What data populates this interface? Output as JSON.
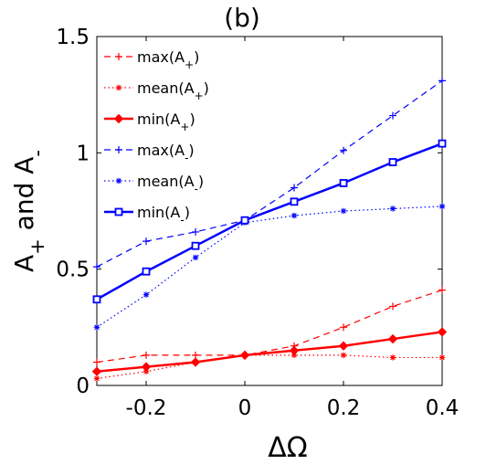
{
  "chart_data": {
    "type": "line",
    "title": "(b)",
    "xlabel": "ΔΩ",
    "ylabel": "A+ and A-",
    "xlim": [
      -0.3,
      0.4
    ],
    "ylim": [
      0,
      1.5
    ],
    "x_ticks": [
      "-0.2",
      "0",
      "0.2",
      "0.4"
    ],
    "y_ticks": [
      "0",
      "0.5",
      "1",
      "1.5"
    ],
    "grid": false,
    "legend_position": "top-left",
    "x": [
      -0.3,
      -0.2,
      -0.1,
      0,
      0.1,
      0.2,
      0.3,
      0.4
    ],
    "series": [
      {
        "name": "max(A+)",
        "values": [
          0.1,
          0.13,
          0.13,
          0.13,
          0.17,
          0.25,
          0.34,
          0.41
        ],
        "color": "#ff0000",
        "dash": "dashed",
        "marker": "plus"
      },
      {
        "name": "mean(A+)",
        "values": [
          0.03,
          0.06,
          0.1,
          0.13,
          0.13,
          0.13,
          0.12,
          0.12
        ],
        "color": "#ff0000",
        "dash": "dotted",
        "marker": "asterisk"
      },
      {
        "name": "min(A+)",
        "values": [
          0.06,
          0.08,
          0.1,
          0.13,
          0.15,
          0.17,
          0.2,
          0.23
        ],
        "color": "#ff0000",
        "dash": "solid",
        "marker": "diamond"
      },
      {
        "name": "max(A-)",
        "values": [
          0.51,
          0.62,
          0.66,
          0.71,
          0.85,
          1.01,
          1.16,
          1.31
        ],
        "color": "#0000ff",
        "dash": "dashed",
        "marker": "plus"
      },
      {
        "name": "mean(A-)",
        "values": [
          0.25,
          0.39,
          0.55,
          0.7,
          0.73,
          0.75,
          0.76,
          0.77
        ],
        "color": "#0000ff",
        "dash": "dotted",
        "marker": "asterisk"
      },
      {
        "name": "min(A-)",
        "values": [
          0.37,
          0.49,
          0.6,
          0.71,
          0.79,
          0.87,
          0.96,
          1.04
        ],
        "color": "#0000ff",
        "dash": "solid",
        "marker": "square"
      }
    ]
  }
}
